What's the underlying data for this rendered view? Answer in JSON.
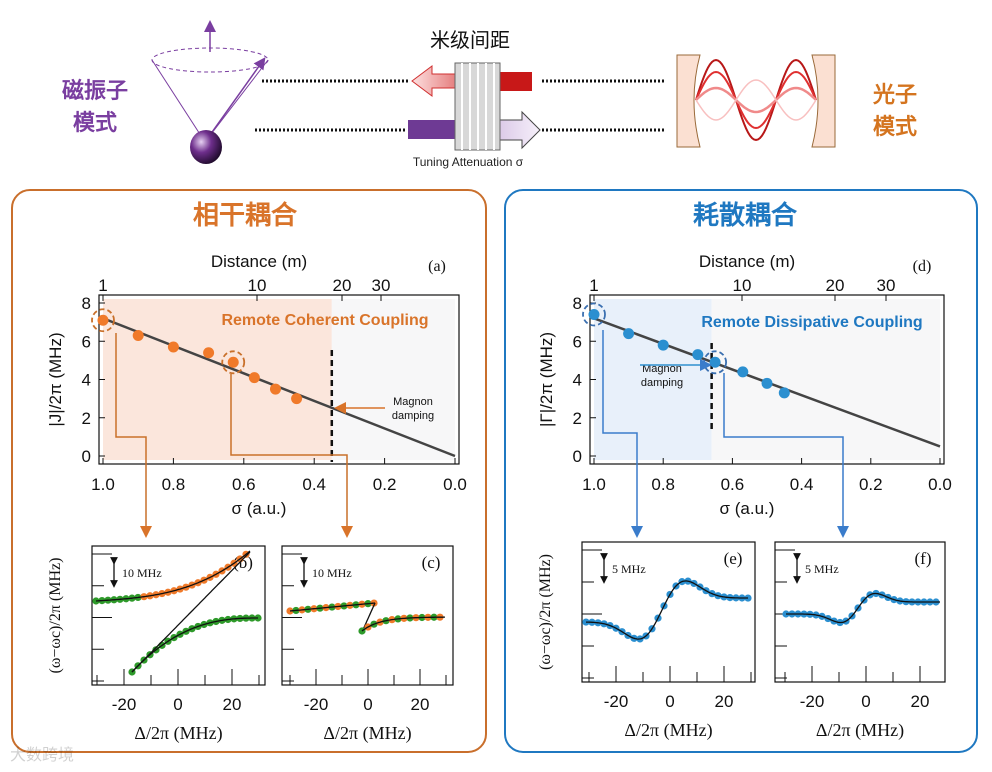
{
  "colors": {
    "coherent": "#d9742a",
    "dissipative": "#1f78c1",
    "magnon": "#7a3ea0",
    "photon": "#d4741f",
    "green": "#2e9a2a",
    "orange_marker": "#f07a2a",
    "blue_marker": "#2b8fd0"
  },
  "schematic": {
    "magnon_label_line1": "磁振子",
    "magnon_label_line2": "模式",
    "photon_label_line1": "光子",
    "photon_label_line2": "模式",
    "distance_label": "米级间距",
    "attenuation_label": "Tuning Attenuation σ"
  },
  "left_panel": {
    "title": "相干耦合",
    "main_plot": {
      "panel_label": "(a)",
      "top_axis_label": "Distance (m)",
      "top_ticks": [
        "1",
        "10",
        "20",
        "30"
      ],
      "x_label": "σ (a.u.)",
      "x_ticks": [
        "1.0",
        "0.8",
        "0.6",
        "0.4",
        "0.2",
        "0.0"
      ],
      "y_label": "|J|/2π (MHz)",
      "y_ticks": [
        "0",
        "2",
        "4",
        "6",
        "8"
      ],
      "annotation": "Remote Coherent Coupling",
      "damping_line1": "Magnon",
      "damping_line2": "damping"
    },
    "sub_b": {
      "panel_label": "(b)",
      "scale": "10 MHz",
      "x_ticks": [
        "-20",
        "0",
        "20"
      ],
      "x_label": "Δ/2π  (MHz)",
      "y_label": "(ω−ωc)/2π  (MHz)"
    },
    "sub_c": {
      "panel_label": "(c)",
      "scale": "10 MHz",
      "x_ticks": [
        "-20",
        "0",
        "20"
      ],
      "x_label": "Δ/2π  (MHz)"
    }
  },
  "right_panel": {
    "title": "耗散耦合",
    "main_plot": {
      "panel_label": "(d)",
      "top_axis_label": "Distance (m)",
      "top_ticks": [
        "1",
        "10",
        "20",
        "30"
      ],
      "x_label": "σ (a.u.)",
      "x_ticks": [
        "1.0",
        "0.8",
        "0.6",
        "0.4",
        "0.2",
        "0.0"
      ],
      "y_label": "|Γ|/2π (MHz)",
      "y_ticks": [
        "0",
        "2",
        "4",
        "6",
        "8"
      ],
      "annotation": "Remote Dissipative Coupling",
      "damping_line1": "Magnon",
      "damping_line2": "damping"
    },
    "sub_e": {
      "panel_label": "(e)",
      "scale": "5 MHz",
      "x_ticks": [
        "-20",
        "0",
        "20"
      ],
      "x_label": "Δ/2π  (MHz)",
      "y_label": "(ω−ωc)/2π  (MHz)"
    },
    "sub_f": {
      "panel_label": "(f)",
      "scale": "5 MHz",
      "x_ticks": [
        "-20",
        "0",
        "20"
      ],
      "x_label": "Δ/2π  (MHz)"
    }
  },
  "watermark": "大数跨境",
  "chart_data": [
    {
      "type": "scatter",
      "title": "(a)",
      "xlabel": "σ (a.u.)",
      "ylabel": "|J|/2π (MHz)",
      "xlim": [
        1.0,
        0.0
      ],
      "ylim": [
        0,
        8
      ],
      "points": [
        [
          1.0,
          7.1
        ],
        [
          0.9,
          6.3
        ],
        [
          0.8,
          5.7
        ],
        [
          0.7,
          5.4
        ],
        [
          0.63,
          4.9
        ],
        [
          0.57,
          4.1
        ],
        [
          0.51,
          3.5
        ],
        [
          0.45,
          3.0
        ]
      ],
      "fit_line": [
        [
          1.0,
          7.2
        ],
        [
          0.0,
          0.0
        ]
      ],
      "magnon_damping_sigma": 0.35,
      "highlighted_points": [
        0,
        4
      ]
    },
    {
      "type": "scatter",
      "title": "(d)",
      "xlabel": "σ (a.u.)",
      "ylabel": "|Γ|/2π (MHz)",
      "xlim": [
        1.0,
        0.0
      ],
      "ylim": [
        0,
        8
      ],
      "points": [
        [
          1.0,
          7.4
        ],
        [
          0.9,
          6.4
        ],
        [
          0.8,
          5.8
        ],
        [
          0.7,
          5.3
        ],
        [
          0.65,
          4.9
        ],
        [
          0.57,
          4.4
        ],
        [
          0.5,
          3.8
        ],
        [
          0.45,
          3.3
        ]
      ],
      "fit_line": [
        [
          1.0,
          7.2
        ],
        [
          0.0,
          0.5
        ]
      ],
      "magnon_damping_sigma": 0.66,
      "highlighted_points": [
        0,
        4
      ]
    }
  ]
}
